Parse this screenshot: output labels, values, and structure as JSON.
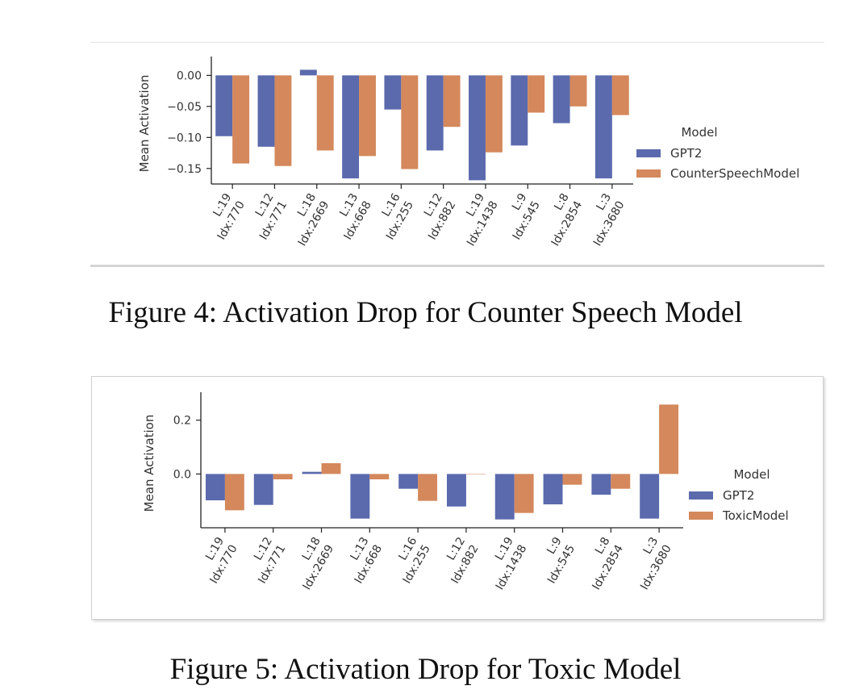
{
  "figures": [
    {
      "caption": "Figure 4: Activation Drop for Counter Speech Model",
      "chart_data": {
        "type": "bar",
        "categories": [
          [
            "L:19",
            "Idx:770"
          ],
          [
            "L:12",
            "Idx:771"
          ],
          [
            "L:18",
            "Idx:2669"
          ],
          [
            "L:13",
            "Idx:668"
          ],
          [
            "L:16",
            "Idx:255"
          ],
          [
            "L:12",
            "Idx:882"
          ],
          [
            "L:19",
            "Idx:1438"
          ],
          [
            "L:9",
            "Idx:545"
          ],
          [
            "L:8",
            "Idx:2854"
          ],
          [
            "L:3",
            "Idx:3680"
          ]
        ],
        "series": [
          {
            "name": "GPT2",
            "color": "#5b6aad",
            "values": [
              -0.098,
              -0.115,
              0.009,
              -0.166,
              -0.055,
              -0.121,
              -0.169,
              -0.113,
              -0.077,
              -0.166
            ]
          },
          {
            "name": "CounterSpeechModel",
            "color": "#d4885c",
            "values": [
              -0.142,
              -0.146,
              -0.121,
              -0.13,
              -0.151,
              -0.083,
              -0.124,
              -0.06,
              -0.05,
              -0.064
            ]
          }
        ],
        "ylabel": "Mean Activation",
        "xlabel": "",
        "ylim": [
          -0.175,
          0.02
        ],
        "yticks": [
          0.0,
          -0.05,
          -0.1,
          -0.15
        ],
        "ytick_labels": [
          "0.00",
          "−0.05",
          "−0.10",
          "−0.15"
        ],
        "legend_title": "Model",
        "legend_position": "right",
        "grid": false
      }
    },
    {
      "caption": "Figure 5: Activation Drop for Toxic Model",
      "chart_data": {
        "type": "bar",
        "categories": [
          [
            "L:19",
            "Idx:770"
          ],
          [
            "L:12",
            "Idx:771"
          ],
          [
            "L:18",
            "Idx:2669"
          ],
          [
            "L:13",
            "Idx:668"
          ],
          [
            "L:16",
            "Idx:255"
          ],
          [
            "L:12",
            "Idx:882"
          ],
          [
            "L:19",
            "Idx:1438"
          ],
          [
            "L:9",
            "Idx:545"
          ],
          [
            "L:8",
            "Idx:2854"
          ],
          [
            "L:3",
            "Idx:3680"
          ]
        ],
        "series": [
          {
            "name": "GPT2",
            "color": "#5b6aad",
            "values": [
              -0.098,
              -0.115,
              0.008,
              -0.166,
              -0.055,
              -0.121,
              -0.169,
              -0.113,
              -0.077,
              -0.166
            ]
          },
          {
            "name": "ToxicModel",
            "color": "#d4885c",
            "values": [
              -0.135,
              -0.02,
              0.04,
              -0.02,
              -0.1,
              0.0,
              -0.145,
              -0.04,
              -0.055,
              0.258
            ]
          }
        ],
        "ylabel": "Mean Activation",
        "xlabel": "",
        "ylim": [
          -0.2,
          0.28
        ],
        "yticks": [
          0.2,
          0.0
        ],
        "ytick_labels": [
          "0.2",
          "0.0"
        ],
        "legend_title": "Model",
        "legend_position": "right",
        "grid": false
      }
    }
  ]
}
